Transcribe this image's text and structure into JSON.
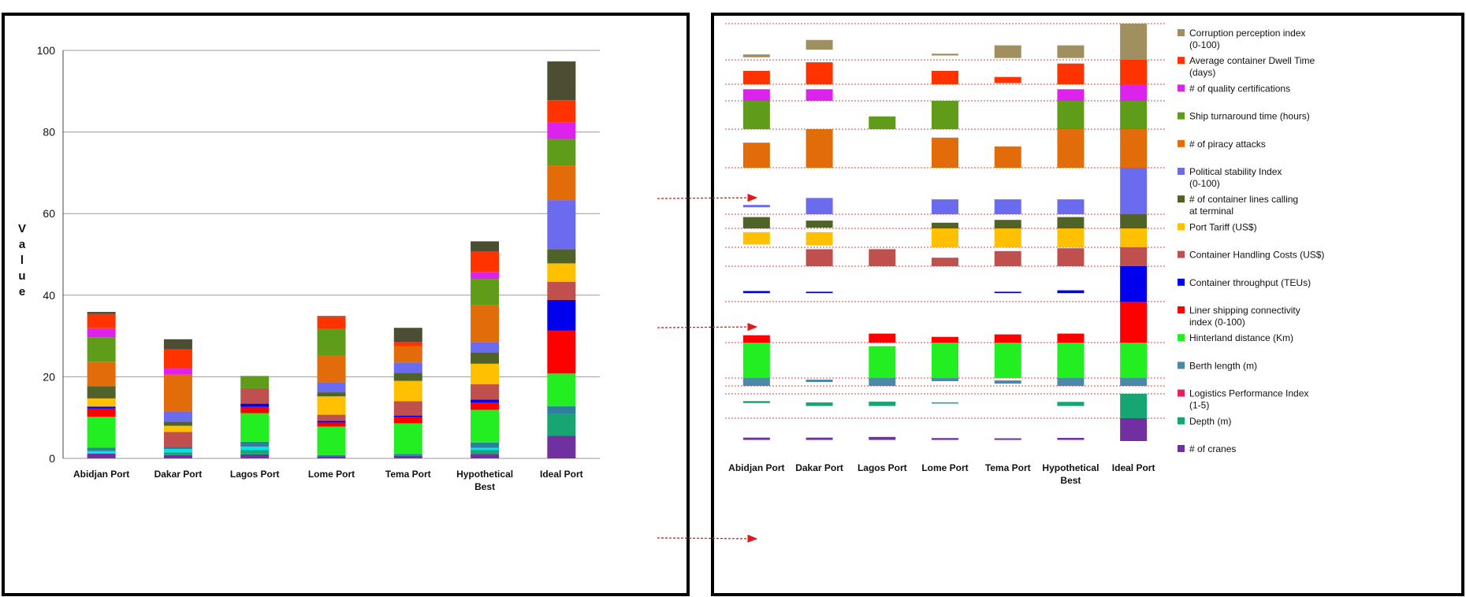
{
  "chart_data": [
    {
      "type": "bar",
      "stacked": true,
      "panel": "absolute",
      "ylabel": "Value",
      "ylim": [
        0,
        100
      ],
      "yticks": [
        0,
        20,
        40,
        60,
        80,
        100
      ],
      "grid": true,
      "categories": [
        "Abidjan Port",
        "Dakar Port",
        "Lagos Port",
        "Lome Port",
        "Tema Port",
        "Hypothetical Best",
        "Ideal Port"
      ],
      "series": [
        {
          "name": "# of cranes",
          "color": "#7030A0",
          "values": [
            1.2,
            0.8,
            1.0,
            0.5,
            0.6,
            1.1,
            5.5
          ]
        },
        {
          "name": "Depth (m)",
          "color": "#17A673",
          "values": [
            0.0,
            0.7,
            1.1,
            0.0,
            0.0,
            1.0,
            5.5
          ]
        },
        {
          "name": "Logistics Performance Index (1-5)",
          "color": "#00E5E5",
          "values": [
            0.6,
            0.8,
            0.8,
            0.0,
            0.0,
            0.5,
            0.0
          ]
        },
        {
          "name": "Berth length (m)",
          "color": "#2E7F9F",
          "values": [
            0.8,
            0.6,
            1.2,
            0.3,
            0.5,
            1.3,
            1.8
          ]
        },
        {
          "name": "Hinterland distance (Km)",
          "color": "#22EE22",
          "values": [
            7.6,
            0.0,
            7.0,
            7.0,
            7.5,
            8.0,
            8.0
          ]
        },
        {
          "name": "Liner shipping connectivity index (0-100)",
          "color": "#FF0000",
          "values": [
            2.0,
            0.0,
            1.5,
            1.0,
            1.5,
            1.8,
            10.5
          ]
        },
        {
          "name": "Container throughput (TEUs)",
          "color": "#0000EE",
          "values": [
            0.5,
            0.0,
            0.8,
            0.4,
            0.4,
            0.7,
            7.5
          ]
        },
        {
          "name": "Container Handling Costs (US$)",
          "color": "#C0504D",
          "values": [
            0.0,
            3.6,
            3.8,
            1.5,
            3.5,
            3.8,
            4.5
          ]
        },
        {
          "name": "Port Tariff (US$)",
          "color": "#FFC000",
          "values": [
            2.0,
            1.5,
            0.0,
            4.5,
            5.0,
            5.0,
            4.5
          ]
        },
        {
          "name": "# of container lines calling at terminal",
          "color": "#4F6228",
          "values": [
            3.0,
            1.0,
            0.0,
            1.0,
            2.0,
            2.8,
            3.5
          ]
        },
        {
          "name": "Political stability Index (0-100)",
          "color": "#6B6BF0",
          "values": [
            0.0,
            2.5,
            0.0,
            2.5,
            2.5,
            2.5,
            12.0
          ]
        },
        {
          "name": "# of piracy attacks",
          "color": "#E26B0A",
          "values": [
            6.0,
            9.0,
            0.0,
            6.5,
            4.0,
            9.0,
            8.5
          ]
        },
        {
          "name": "Ship turnaround time (hours)",
          "color": "#5E9C1A",
          "values": [
            6.0,
            0.0,
            3.0,
            6.5,
            0.0,
            6.5,
            6.5
          ]
        },
        {
          "name": "# of quality certifications",
          "color": "#DD22EE",
          "values": [
            2.2,
            1.7,
            0.0,
            0.0,
            0.0,
            1.7,
            4.0
          ]
        },
        {
          "name": "Average container Dwell Time (days)",
          "color": "#FF3300",
          "values": [
            3.5,
            4.5,
            0.0,
            3.0,
            1.0,
            5.0,
            5.5
          ]
        },
        {
          "name": "Corruption perception index (0-100)",
          "color": "#4D4D33",
          "values": [
            0.5,
            2.5,
            0.0,
            0.2,
            3.5,
            2.5,
            9.5
          ]
        }
      ]
    },
    {
      "type": "bar",
      "panel": "ranges",
      "categories": [
        "Abidjan Port",
        "Dakar Port",
        "Lagos Port",
        "Lome Port",
        "Tema Port",
        "Hypothetical Best",
        "Ideal Port"
      ],
      "band_colors": {
        "# of cranes": "#7030A0",
        "Depth (m)": "#17A673",
        "Logistics Performance Index (1-5)": "#E8205A",
        "Berth length (m)": "#4A8AA8",
        "Hinterland distance (Km)": "#22EE22",
        "Liner shipping connectivity index (0-100)": "#FF0000",
        "Container throughput (TEUs)": "#0000EE",
        "Container Handling Costs (US$)": "#C0504D",
        "Port Tariff (US$)": "#FFC000",
        "# of container lines calling at terminal": "#4F6228",
        "Political stability Index (0-100)": "#6B6BF0",
        "# of piracy attacks": "#E26B0A",
        "Ship turnaround time (hours)": "#5E9C1A",
        "# of quality certifications": "#DD22EE",
        "Average container Dwell Time (days)": "#FF3300",
        "Corruption perception index (0-100)": "#A09060"
      },
      "legend": [
        {
          "label": "Corruption perception index (0-100)",
          "color": "#A09060"
        },
        {
          "label": "Average container Dwell Time (days)",
          "color": "#FF3300"
        },
        {
          "label": "# of quality certifications",
          "color": "#DD22EE"
        },
        {
          "label": "Ship turnaround time (hours)",
          "color": "#5E9C1A"
        },
        {
          "label": "# of piracy attacks",
          "color": "#E26B0A"
        },
        {
          "label": "Political stability Index (0-100)",
          "color": "#6B6BF0"
        },
        {
          "label": "# of container lines calling at terminal",
          "color": "#4F6228"
        },
        {
          "label": "Port Tariff (US$)",
          "color": "#FFC000"
        },
        {
          "label": "Container Handling Costs (US$)",
          "color": "#C0504D"
        },
        {
          "label": "Container throughput (TEUs)",
          "color": "#0000EE"
        },
        {
          "label": "Liner shipping connectivity index (0-100)",
          "color": "#FF0000"
        },
        {
          "label": "Hinterland distance (Km)",
          "color": "#22EE22"
        },
        {
          "label": "Berth length (m)",
          "color": "#4A8AA8"
        },
        {
          "label": "Logistics Performance Index (1-5)",
          "color": "#E8205A"
        },
        {
          "label": "Depth (m)",
          "color": "#17A673"
        },
        {
          "label": "# of cranes",
          "color": "#7030A0"
        }
      ]
    }
  ]
}
